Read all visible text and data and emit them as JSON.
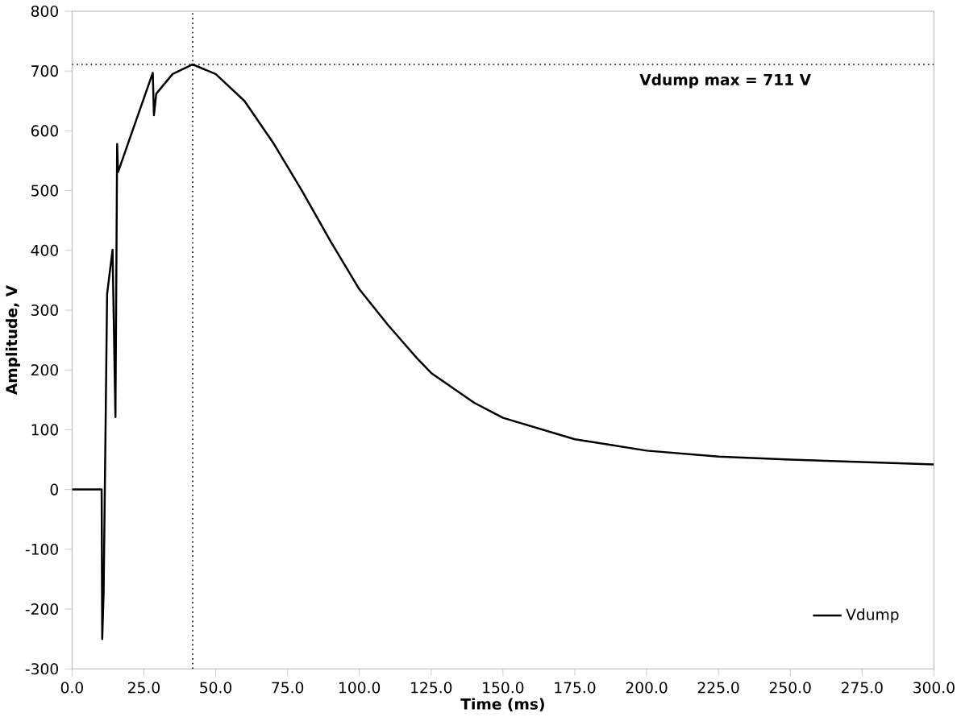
{
  "chart_data": {
    "type": "line",
    "xlabel": "Time (ms)",
    "ylabel": "Amplitude, V",
    "x": [
      0,
      10.3,
      10.5,
      11.0,
      12.2,
      14.1,
      15.1,
      15.7,
      16.0,
      28.1,
      28.5,
      29.3,
      35,
      42,
      50,
      60,
      70,
      75,
      80,
      90,
      100,
      110,
      120,
      125,
      140,
      150,
      175,
      200,
      225,
      250,
      275,
      300
    ],
    "series": [
      {
        "name": "Vdump",
        "color": "#000000",
        "values": [
          0,
          0,
          -250,
          -170,
          327,
          401,
          121,
          578,
          531,
          697,
          626,
          662,
          695,
          711,
          695,
          650,
          580,
          540,
          500,
          415,
          335,
          275,
          220,
          195,
          145,
          120,
          84,
          65,
          55,
          50,
          46,
          42
        ]
      }
    ],
    "xlim": [
      0,
      300
    ],
    "ylim": [
      -300,
      800
    ],
    "xticks": [
      {
        "value": 0,
        "label": "0.0"
      },
      {
        "value": 25,
        "label": "25.0"
      },
      {
        "value": 50,
        "label": "50.0"
      },
      {
        "value": 75,
        "label": "75.0"
      },
      {
        "value": 100,
        "label": "100.0"
      },
      {
        "value": 125,
        "label": "125.0"
      },
      {
        "value": 150,
        "label": "150.0"
      },
      {
        "value": 175,
        "label": "175.0"
      },
      {
        "value": 200,
        "label": "200.0"
      },
      {
        "value": 225,
        "label": "225.0"
      },
      {
        "value": 250,
        "label": "250.0"
      },
      {
        "value": 275,
        "label": "275.0"
      },
      {
        "value": 300,
        "label": "300.0"
      }
    ],
    "yticks": [
      -300,
      -200,
      -100,
      0,
      100,
      200,
      300,
      400,
      500,
      600,
      700,
      800
    ],
    "ref_lines": [
      {
        "axis": "x",
        "value": 42,
        "line_style": "dotted"
      },
      {
        "axis": "y",
        "value": 711,
        "label": "Vdump max = 711 V",
        "line_style": "dotted"
      }
    ],
    "legend": "bottom right",
    "line_style": "solid"
  }
}
